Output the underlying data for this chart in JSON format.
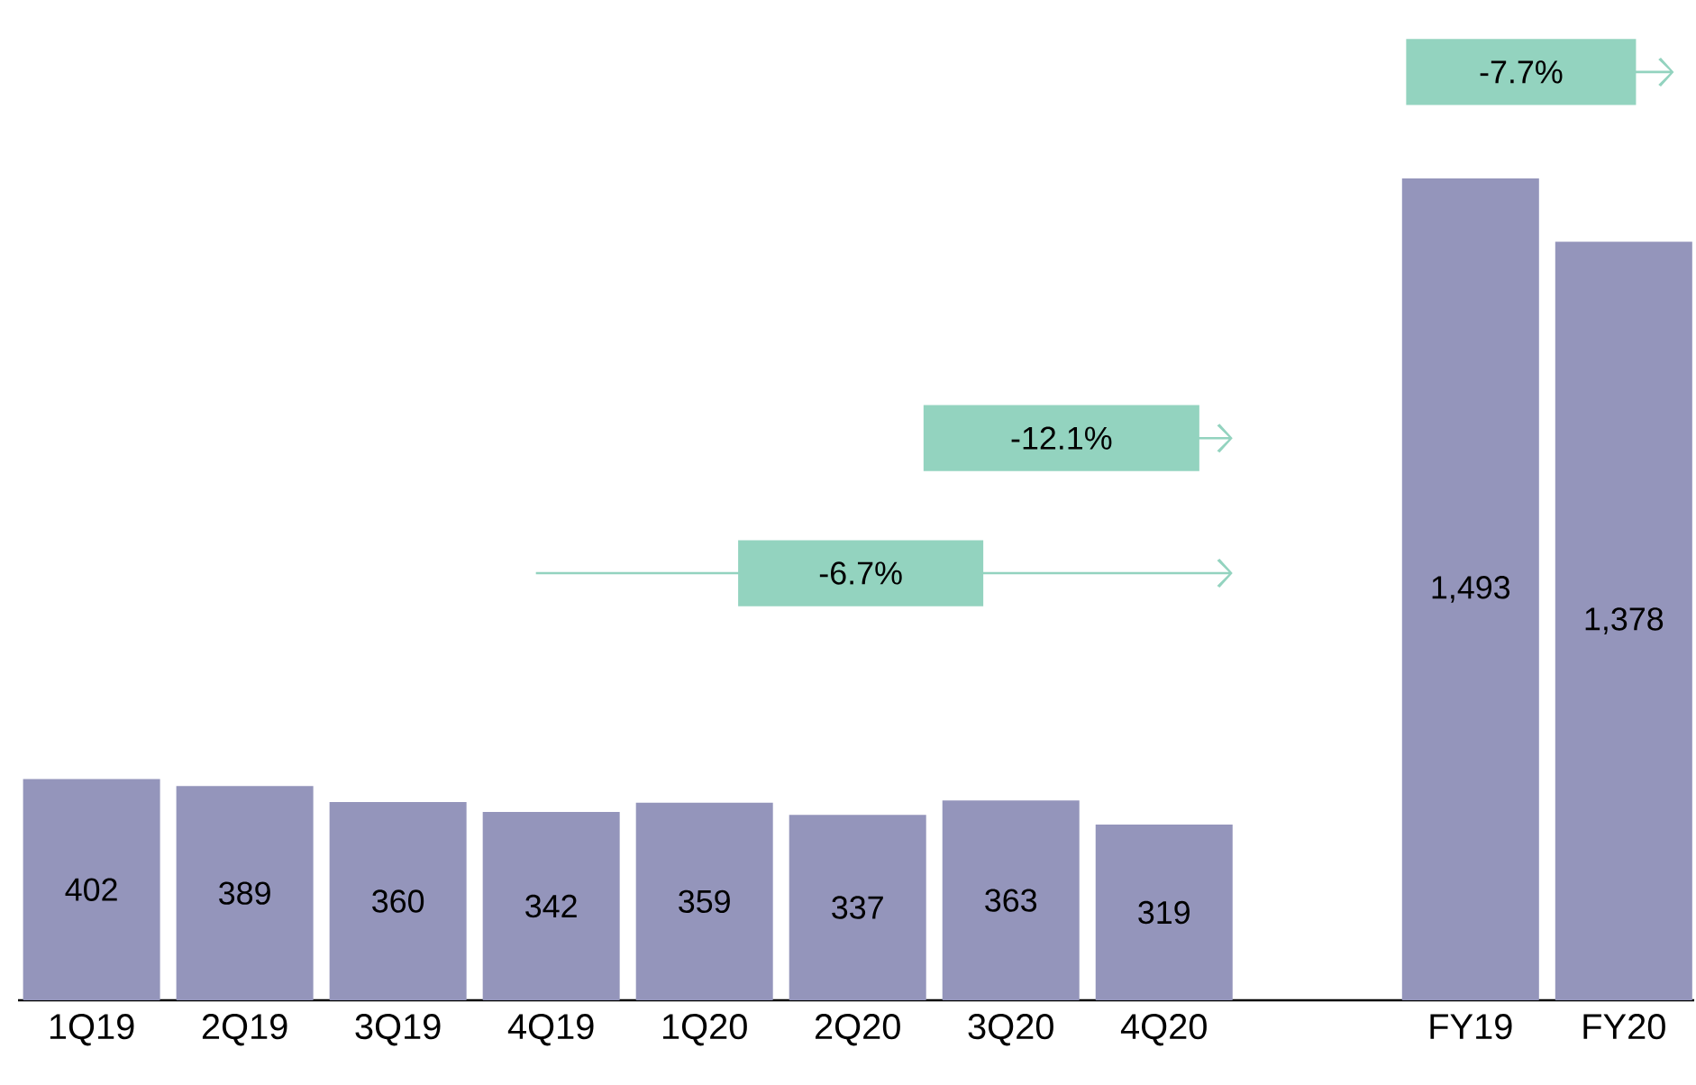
{
  "chart_data": {
    "type": "bar",
    "categories": [
      "1Q19",
      "2Q19",
      "3Q19",
      "4Q19",
      "1Q20",
      "2Q20",
      "3Q20",
      "4Q20",
      null,
      "FY19",
      "FY20"
    ],
    "values": [
      402,
      389,
      360,
      342,
      359,
      337,
      363,
      319,
      null,
      1493,
      1378
    ],
    "value_labels": [
      "402",
      "389",
      "360",
      "342",
      "359",
      "337",
      "363",
      "319",
      null,
      "1,493",
      "1,378"
    ],
    "color": "#9495bb",
    "annotations": [
      "-7.7%",
      "-12.1%",
      "-6.7%"
    ]
  }
}
